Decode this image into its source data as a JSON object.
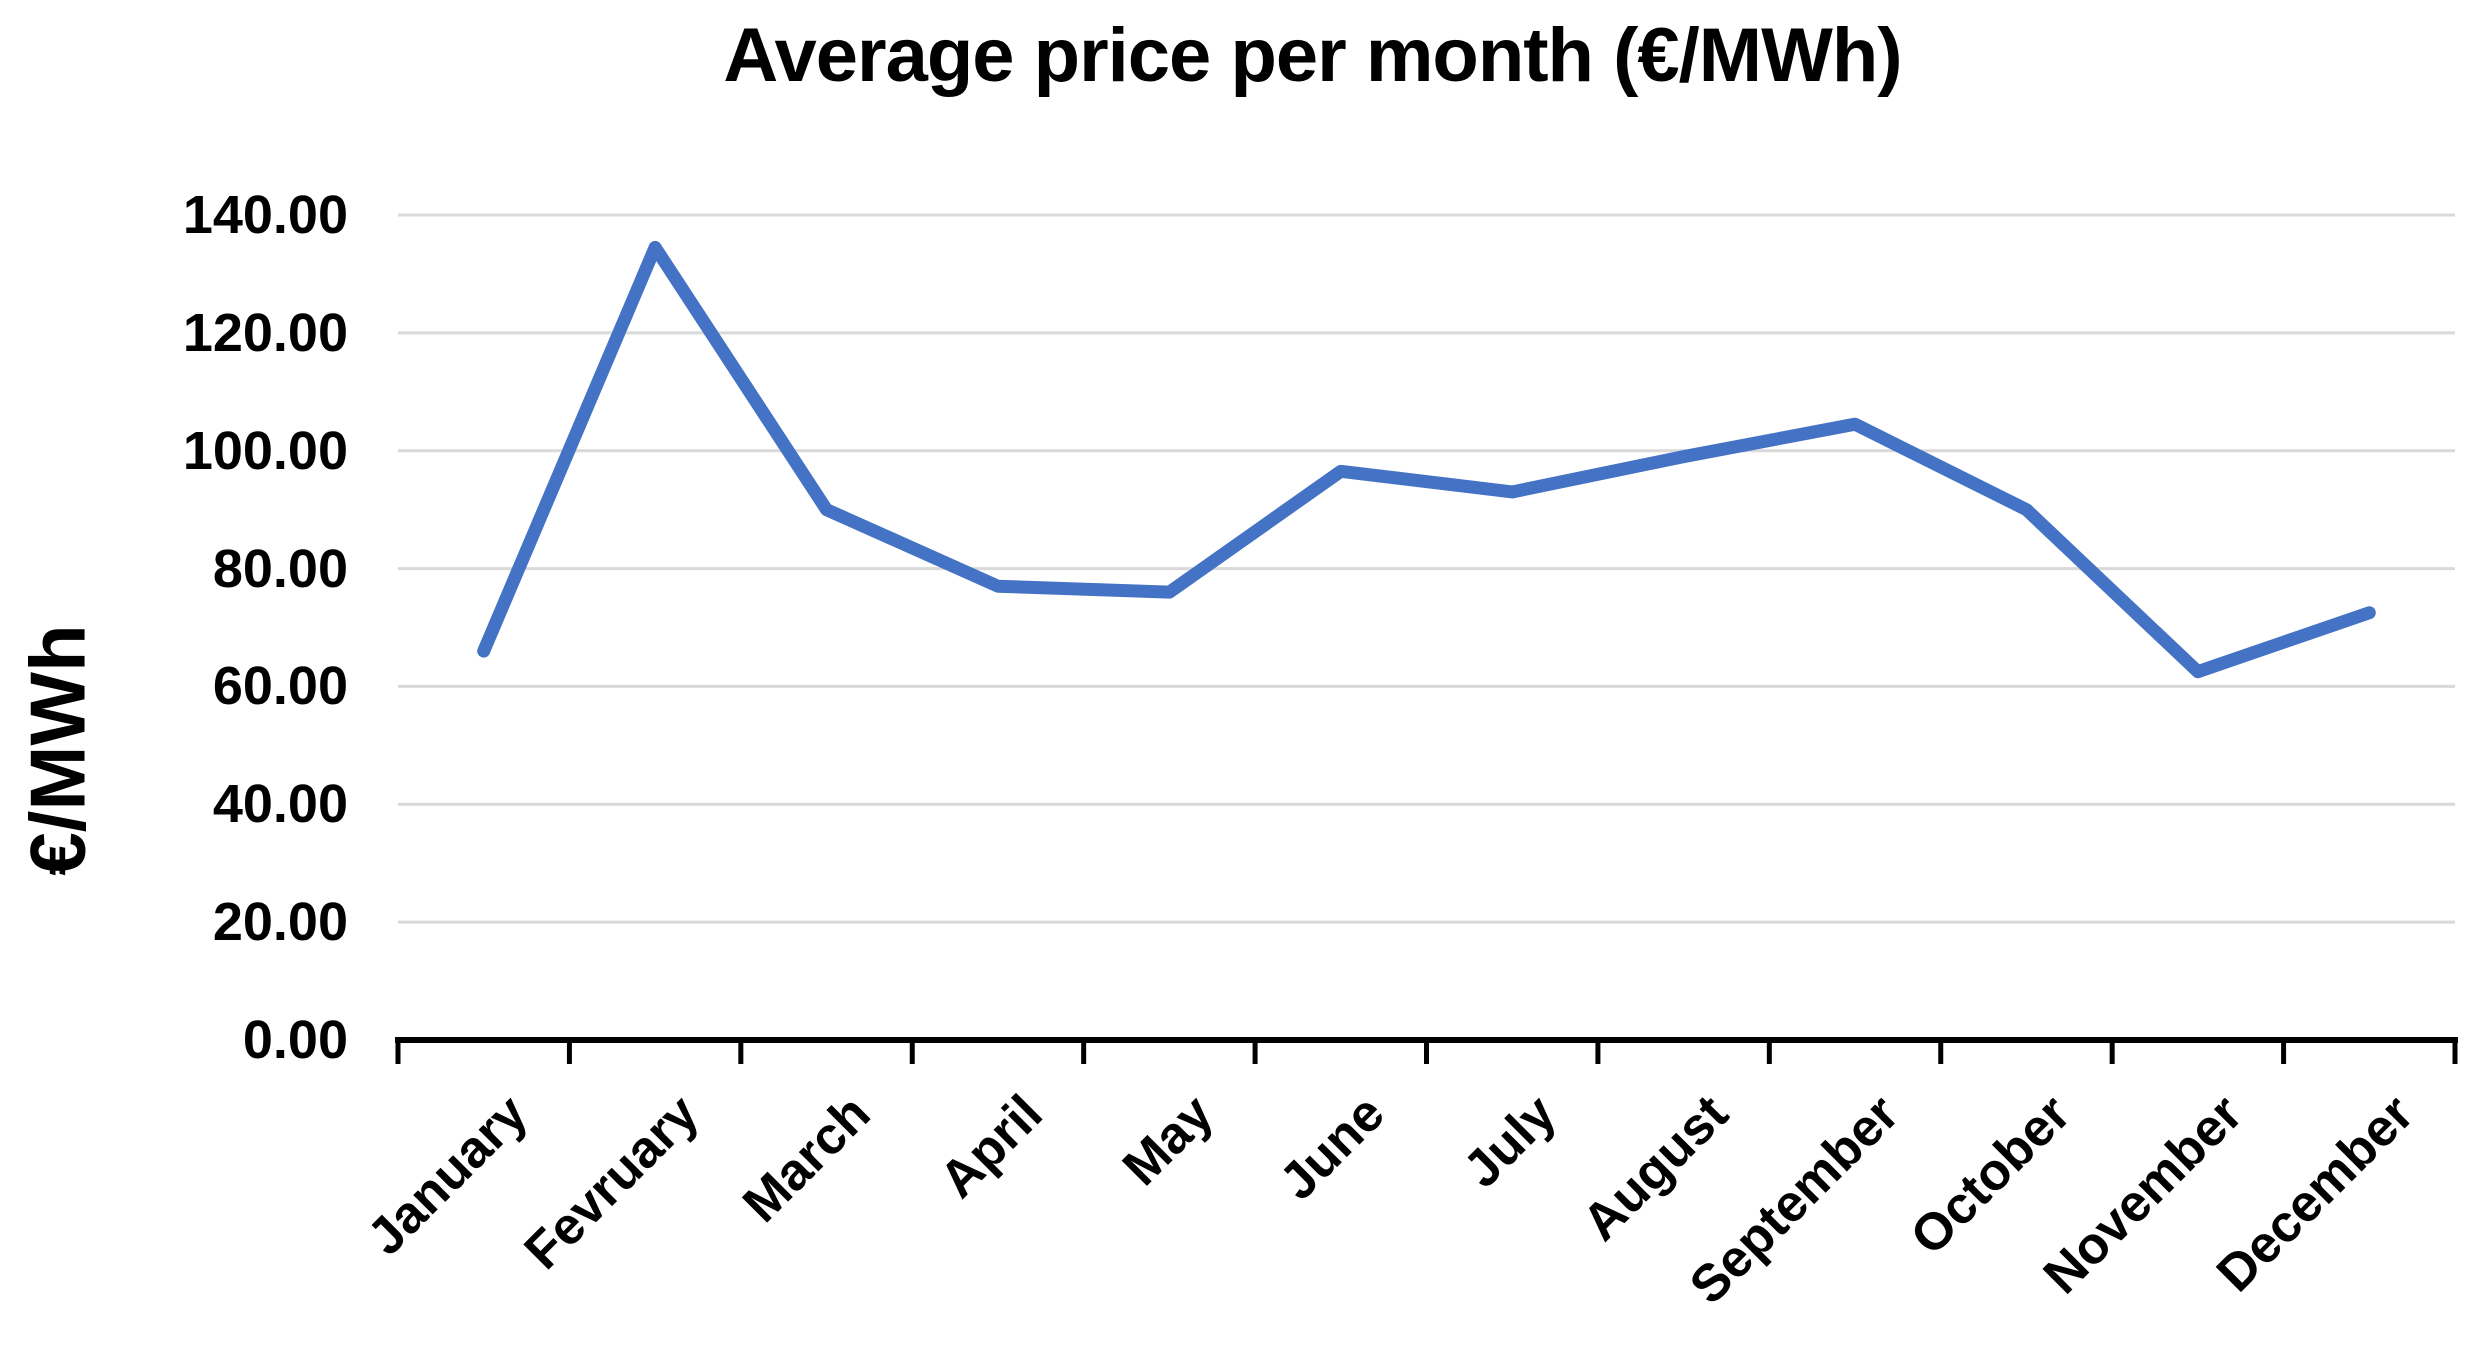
{
  "page": {
    "background": "#ffffff"
  },
  "chart_data": {
    "type": "line",
    "title": "Average price per month (€/MWh)",
    "y_axis_title": "€/MWh",
    "xlabel": "",
    "categories": [
      "January",
      "Fevruary",
      "March",
      "April",
      "May",
      "June",
      "July",
      "August",
      "September",
      "October",
      "November",
      "December"
    ],
    "series": [
      {
        "color": "#4472C4",
        "values": [
          66,
          134.5,
          90,
          77,
          76,
          96.5,
          93,
          99,
          104.5,
          90,
          62.5,
          72.5
        ]
      }
    ],
    "ylim": [
      0,
      140
    ],
    "ytick_step": 20,
    "ytick_labels": [
      "140.00",
      "120.00",
      "100.00",
      "80.00",
      "60.00",
      "40.00",
      "20.00",
      "0.00"
    ],
    "grid": true,
    "gridline_color": "#d9d9d9",
    "axis_color": "#000000",
    "legend_position": "none",
    "x_label_rotation_deg": 45
  }
}
